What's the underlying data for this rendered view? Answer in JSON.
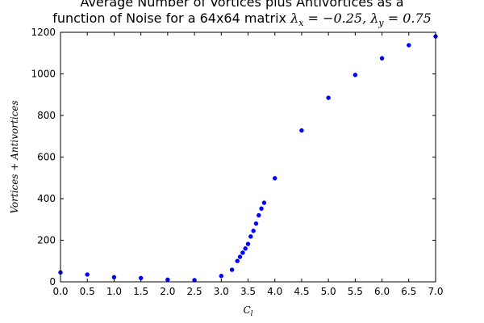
{
  "chart_data": {
    "type": "scatter",
    "title_line1": "Average Number of Vortices plus Antivortices as a",
    "title_line2_text": "function of Noise for a 64x64 matrix ",
    "title_line2_math": "λx = −0.25, λy = 0.75",
    "xlabel": "C_l",
    "ylabel": "Vortices + Antivortices",
    "xlim": [
      0.0,
      7.0
    ],
    "ylim": [
      0,
      1200
    ],
    "xticks": [
      "0.0",
      "0.5",
      "1.0",
      "1.5",
      "2.0",
      "2.5",
      "3.0",
      "3.5",
      "4.0",
      "4.5",
      "5.0",
      "5.5",
      "6.0",
      "6.5",
      "7.0"
    ],
    "yticks": [
      "0",
      "200",
      "400",
      "600",
      "800",
      "1000",
      "1200"
    ],
    "grid": false,
    "marker_color": "#0000ff",
    "series": [
      {
        "x": [
          0.0,
          0.5,
          1.0,
          1.5,
          2.0,
          2.5,
          3.0,
          3.2,
          3.3,
          3.35,
          3.4,
          3.45,
          3.5,
          3.55,
          3.6,
          3.65,
          3.7,
          3.75,
          3.8,
          4.0,
          4.5,
          5.0,
          5.5,
          6.0,
          6.5,
          7.0
        ],
        "y": [
          45,
          35,
          22,
          18,
          10,
          8,
          28,
          58,
          100,
          120,
          140,
          160,
          182,
          218,
          245,
          280,
          320,
          352,
          380,
          498,
          728,
          885,
          995,
          1075,
          1138,
          1180
        ]
      }
    ]
  }
}
